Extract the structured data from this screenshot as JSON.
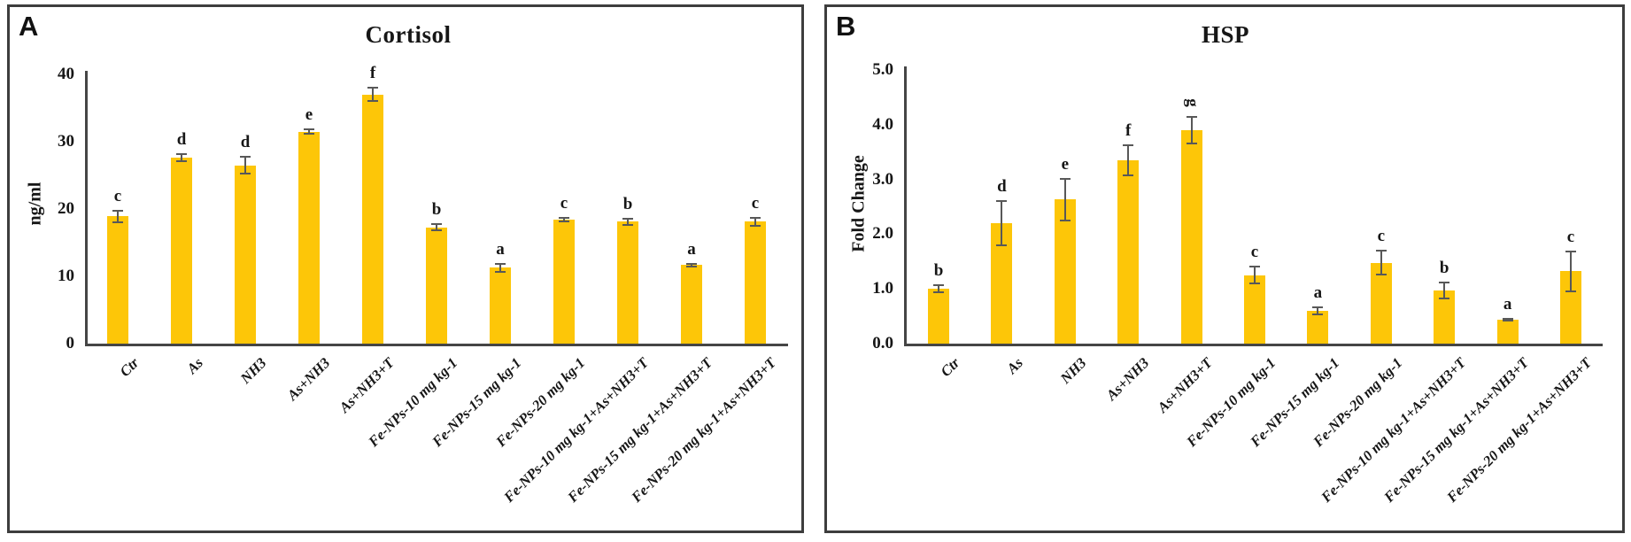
{
  "chart_data": [
    {
      "type": "bar",
      "panel_letter": "A",
      "title": "Cortisol",
      "ylabel": "ng/ml",
      "ylim": [
        0,
        40
      ],
      "ytick_labels": [
        "0",
        "10",
        "20",
        "30",
        "40"
      ],
      "ytick_values": [
        0,
        10,
        20,
        30,
        40
      ],
      "grid": false,
      "legend": "none",
      "categories": [
        "Ctr",
        "As",
        "NH3",
        "As+NH3",
        "As+NH3+T",
        "Fe-NPs-10 mg kg-1",
        "Fe-NPs-15 mg kg-1",
        "Fe-NPs-20 mg kg-1",
        "Fe-NPs-10 mg kg-1+As+NH3+T",
        "Fe-NPs-15 mg kg-1+As+NH3+T",
        "Fe-NPs-20 mg kg-1+As+NH3+T"
      ],
      "values": [
        18.9,
        27.6,
        26.5,
        31.5,
        37.0,
        17.3,
        11.3,
        18.4,
        18.1,
        11.7,
        18.1
      ],
      "errors": [
        0.9,
        0.5,
        1.2,
        0.3,
        1.0,
        0.5,
        0.6,
        0.3,
        0.5,
        0.2,
        0.6
      ],
      "sig_letters": [
        "c",
        "d",
        "d",
        "e",
        "f",
        "b",
        "a",
        "c",
        "b",
        "a",
        "c"
      ],
      "rotated_letter_indices": [],
      "bar_color": "#FDC608",
      "error_color": "#585858"
    },
    {
      "type": "bar",
      "panel_letter": "B",
      "title": "HSP",
      "ylabel": "Fold Change",
      "ylim": [
        0.0,
        5.0
      ],
      "ytick_labels": [
        "0.0",
        "1.0",
        "2.0",
        "3.0",
        "4.0",
        "5.0"
      ],
      "ytick_values": [
        0,
        1,
        2,
        3,
        4,
        5
      ],
      "grid": false,
      "legend": "none",
      "categories": [
        "Ctr",
        "As",
        "NH3",
        "As+NH3",
        "As+NH3+T",
        "Fe-NPs-10 mg kg-1",
        "Fe-NPs-15 mg kg-1",
        "Fe-NPs-20 mg kg-1",
        "Fe-NPs-10 mg kg-1+As+NH3+T",
        "Fe-NPs-15 mg kg-1+As+NH3+T",
        "Fe-NPs-20 mg kg-1+As+NH3+T"
      ],
      "values": [
        1.0,
        2.2,
        2.63,
        3.35,
        3.9,
        1.25,
        0.6,
        1.48,
        0.97,
        0.44,
        1.32
      ],
      "errors": [
        0.06,
        0.4,
        0.38,
        0.27,
        0.25,
        0.15,
        0.06,
        0.22,
        0.15,
        0.02,
        0.36
      ],
      "sig_letters": [
        "b",
        "d",
        "e",
        "f",
        "g",
        "c",
        "a",
        "c",
        "b",
        "a",
        "c"
      ],
      "rotated_letter_indices": [
        4
      ],
      "bar_color": "#FDC608",
      "error_color": "#585858"
    }
  ]
}
